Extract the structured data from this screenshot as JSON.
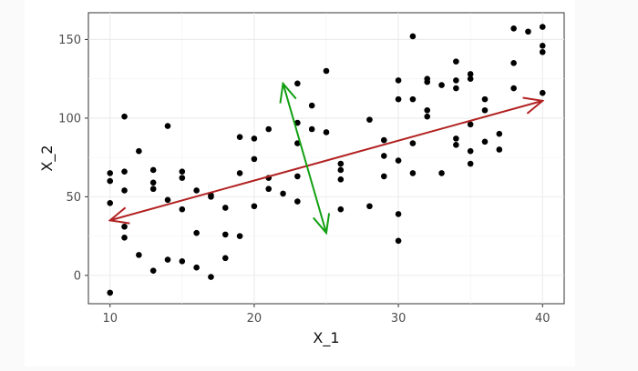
{
  "chart_data": {
    "type": "scatter",
    "title": "",
    "xlabel": "X_1",
    "ylabel": "X_2",
    "xlim": [
      8.5,
      41.5
    ],
    "ylim": [
      -18,
      167
    ],
    "x_ticks": [
      10,
      20,
      30,
      40
    ],
    "y_ticks": [
      0,
      50,
      100,
      150
    ],
    "x_tick_labels": [
      "10",
      "20",
      "30",
      "40"
    ],
    "y_tick_labels": [
      "0",
      "50",
      "100",
      "150"
    ],
    "grid": true,
    "point_color": "#000000",
    "points": [
      [
        10,
        65
      ],
      [
        10,
        60
      ],
      [
        10,
        46
      ],
      [
        10,
        -11
      ],
      [
        11,
        101
      ],
      [
        11,
        66
      ],
      [
        11,
        54
      ],
      [
        11,
        31
      ],
      [
        11,
        24
      ],
      [
        12,
        79
      ],
      [
        12,
        13
      ],
      [
        13,
        67
      ],
      [
        13,
        59
      ],
      [
        13,
        55
      ],
      [
        13,
        3
      ],
      [
        14,
        95
      ],
      [
        14,
        48
      ],
      [
        14,
        10
      ],
      [
        15,
        66
      ],
      [
        15,
        62
      ],
      [
        15,
        42
      ],
      [
        15,
        9
      ],
      [
        16,
        54
      ],
      [
        16,
        27
      ],
      [
        16,
        5
      ],
      [
        17,
        51
      ],
      [
        17,
        50
      ],
      [
        17,
        -1
      ],
      [
        18,
        43
      ],
      [
        18,
        26
      ],
      [
        18,
        11
      ],
      [
        19,
        88
      ],
      [
        19,
        65
      ],
      [
        19,
        25
      ],
      [
        20,
        87
      ],
      [
        20,
        74
      ],
      [
        20,
        44
      ],
      [
        21,
        93
      ],
      [
        21,
        62
      ],
      [
        21,
        55
      ],
      [
        22,
        52
      ],
      [
        23,
        122
      ],
      [
        23,
        97
      ],
      [
        23,
        84
      ],
      [
        23,
        63
      ],
      [
        23,
        47
      ],
      [
        24,
        108
      ],
      [
        24,
        93
      ],
      [
        25,
        130
      ],
      [
        25,
        91
      ],
      [
        26,
        71
      ],
      [
        26,
        67
      ],
      [
        26,
        61
      ],
      [
        26,
        42
      ],
      [
        28,
        99
      ],
      [
        28,
        44
      ],
      [
        29,
        86
      ],
      [
        29,
        76
      ],
      [
        29,
        63
      ],
      [
        30,
        124
      ],
      [
        30,
        112
      ],
      [
        30,
        73
      ],
      [
        30,
        39
      ],
      [
        30,
        22
      ],
      [
        31,
        152
      ],
      [
        31,
        112
      ],
      [
        31,
        84
      ],
      [
        31,
        65
      ],
      [
        32,
        125
      ],
      [
        32,
        123
      ],
      [
        32,
        105
      ],
      [
        32,
        101
      ],
      [
        33,
        121
      ],
      [
        33,
        65
      ],
      [
        34,
        136
      ],
      [
        34,
        124
      ],
      [
        34,
        119
      ],
      [
        34,
        87
      ],
      [
        34,
        83
      ],
      [
        35,
        128
      ],
      [
        35,
        125
      ],
      [
        35,
        96
      ],
      [
        35,
        79
      ],
      [
        35,
        71
      ],
      [
        36,
        112
      ],
      [
        36,
        105
      ],
      [
        36,
        85
      ],
      [
        37,
        90
      ],
      [
        37,
        80
      ],
      [
        38,
        157
      ],
      [
        38,
        135
      ],
      [
        38,
        119
      ],
      [
        39,
        155
      ],
      [
        40,
        158
      ],
      [
        40,
        146
      ],
      [
        40,
        142
      ],
      [
        40,
        116
      ]
    ],
    "annotations": [
      {
        "type": "double-arrow",
        "color": "#b22222",
        "from": [
          10,
          35
        ],
        "to": [
          40,
          111
        ]
      },
      {
        "type": "double-arrow",
        "color": "#12a012",
        "from": [
          22,
          122
        ],
        "to": [
          25,
          27
        ]
      }
    ]
  }
}
